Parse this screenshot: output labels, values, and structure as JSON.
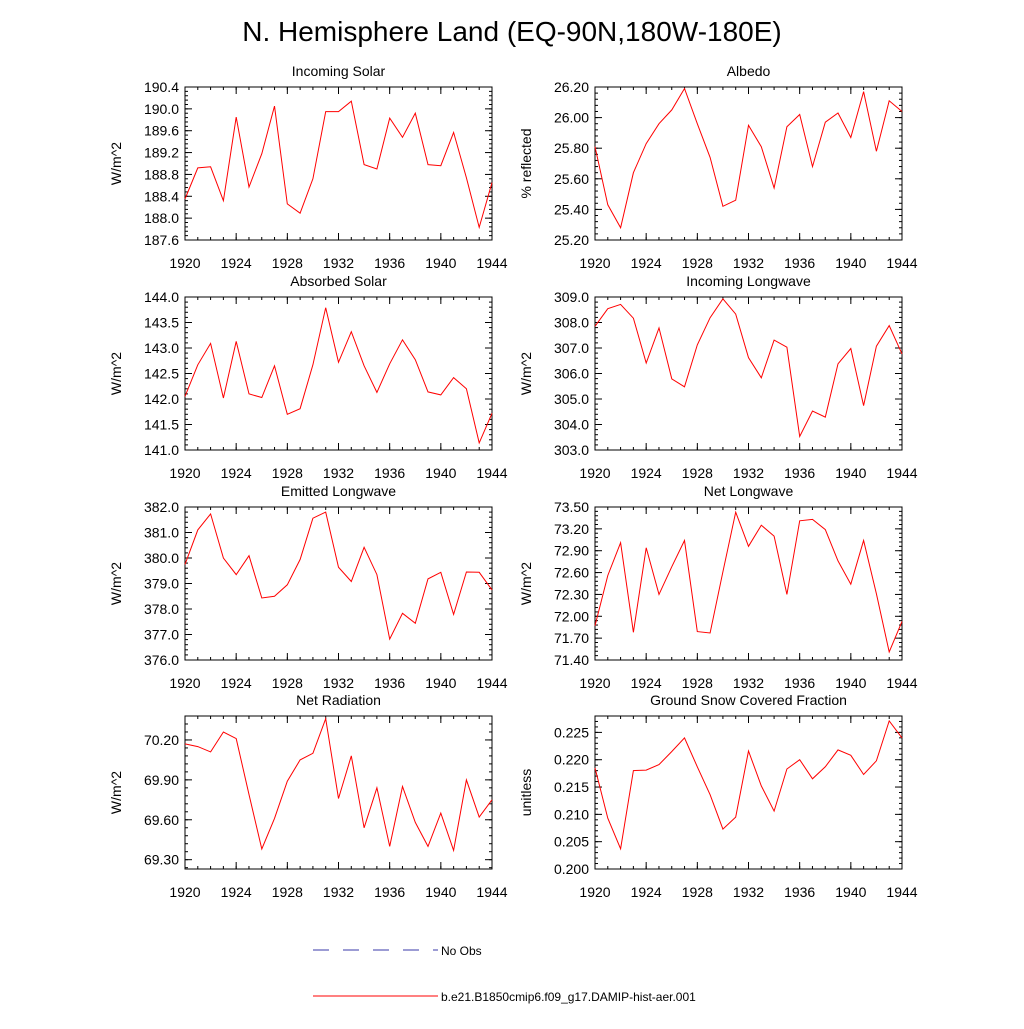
{
  "page_title": "N. Hemisphere Land (EQ-90N,180W-180E)",
  "colors": {
    "series": "#ff0000",
    "no_obs": "#3a3aa8",
    "axis": "#000000"
  },
  "legend": {
    "no_obs_label": "No Obs",
    "model_label": "b.e21.B1850cmip6.f09_g17.DAMIP-hist-aer.001"
  },
  "chart_data": [
    {
      "type": "line",
      "title": "Incoming Solar",
      "ylabel": "W/m^2",
      "xlim": [
        1920,
        1944
      ],
      "ylim": [
        187.6,
        190.4
      ],
      "yticks": [
        187.6,
        188.0,
        188.4,
        188.8,
        189.2,
        189.6,
        190.0,
        190.4
      ],
      "ytick_labels": [
        "187.6",
        "188.0",
        "188.4",
        "188.8",
        "189.2",
        "189.6",
        "190.0",
        "190.4"
      ],
      "xticks": [
        1920,
        1924,
        1928,
        1932,
        1936,
        1940,
        1944
      ],
      "xtick_labels": [
        "1920",
        "1924",
        "1928",
        "1932",
        "1936",
        "1940",
        "1944"
      ],
      "x": [
        1920,
        1921,
        1922,
        1923,
        1924,
        1925,
        1926,
        1927,
        1928,
        1929,
        1930,
        1931,
        1932,
        1933,
        1934,
        1935,
        1936,
        1937,
        1938,
        1939,
        1940,
        1941,
        1942,
        1943,
        1944
      ],
      "values": [
        188.35,
        188.92,
        188.94,
        188.32,
        189.85,
        188.57,
        189.18,
        190.05,
        188.26,
        188.09,
        188.72,
        189.95,
        189.95,
        190.14,
        188.98,
        188.9,
        189.83,
        189.48,
        189.92,
        188.98,
        188.96,
        189.57,
        188.74,
        187.83,
        188.65
      ]
    },
    {
      "type": "line",
      "title": "Albedo",
      "ylabel": "% reflected",
      "xlim": [
        1920,
        1944
      ],
      "ylim": [
        25.2,
        26.2
      ],
      "yticks": [
        25.2,
        25.4,
        25.6,
        25.8,
        26.0,
        26.2
      ],
      "ytick_labels": [
        "25.20",
        "25.40",
        "25.60",
        "25.80",
        "26.00",
        "26.20"
      ],
      "xticks": [
        1920,
        1924,
        1928,
        1932,
        1936,
        1940,
        1944
      ],
      "xtick_labels": [
        "1920",
        "1924",
        "1928",
        "1932",
        "1936",
        "1940",
        "1944"
      ],
      "x": [
        1920,
        1921,
        1922,
        1923,
        1924,
        1925,
        1926,
        1927,
        1928,
        1929,
        1930,
        1931,
        1932,
        1933,
        1934,
        1935,
        1936,
        1937,
        1938,
        1939,
        1940,
        1941,
        1942,
        1943,
        1944
      ],
      "values": [
        25.81,
        25.43,
        25.28,
        25.64,
        25.83,
        25.96,
        26.05,
        26.19,
        25.96,
        25.74,
        25.42,
        25.46,
        25.95,
        25.81,
        25.54,
        25.94,
        26.02,
        25.68,
        25.97,
        26.03,
        25.87,
        26.17,
        25.78,
        26.11,
        26.04
      ]
    },
    {
      "type": "line",
      "title": "Absorbed Solar",
      "ylabel": "W/m^2",
      "xlim": [
        1920,
        1944
      ],
      "ylim": [
        141.0,
        144.0
      ],
      "yticks": [
        141.0,
        141.5,
        142.0,
        142.5,
        143.0,
        143.5,
        144.0
      ],
      "ytick_labels": [
        "141.0",
        "141.5",
        "142.0",
        "142.5",
        "143.0",
        "143.5",
        "144.0"
      ],
      "xticks": [
        1920,
        1924,
        1928,
        1932,
        1936,
        1940,
        1944
      ],
      "xtick_labels": [
        "1920",
        "1924",
        "1928",
        "1932",
        "1936",
        "1940",
        "1944"
      ],
      "x": [
        1920,
        1921,
        1922,
        1923,
        1924,
        1925,
        1926,
        1927,
        1928,
        1929,
        1930,
        1931,
        1932,
        1933,
        1934,
        1935,
        1936,
        1937,
        1938,
        1939,
        1940,
        1941,
        1942,
        1943,
        1944
      ],
      "values": [
        142.05,
        142.67,
        143.09,
        142.02,
        143.13,
        142.1,
        142.03,
        142.65,
        141.7,
        141.81,
        142.67,
        143.79,
        142.72,
        143.32,
        142.65,
        142.13,
        142.69,
        143.16,
        142.77,
        142.14,
        142.08,
        142.42,
        142.2,
        141.14,
        141.72
      ]
    },
    {
      "type": "line",
      "title": "Incoming Longwave",
      "ylabel": "W/m^2",
      "xlim": [
        1920,
        1944
      ],
      "ylim": [
        303.0,
        309.0
      ],
      "yticks": [
        303.0,
        304.0,
        305.0,
        306.0,
        307.0,
        308.0,
        309.0
      ],
      "ytick_labels": [
        "303.0",
        "304.0",
        "305.0",
        "306.0",
        "307.0",
        "308.0",
        "309.0"
      ],
      "xticks": [
        1920,
        1924,
        1928,
        1932,
        1936,
        1940,
        1944
      ],
      "xtick_labels": [
        "1920",
        "1924",
        "1928",
        "1932",
        "1936",
        "1940",
        "1944"
      ],
      "x": [
        1920,
        1921,
        1922,
        1923,
        1924,
        1925,
        1926,
        1927,
        1928,
        1929,
        1930,
        1931,
        1932,
        1933,
        1934,
        1935,
        1936,
        1937,
        1938,
        1939,
        1940,
        1941,
        1942,
        1943,
        1944
      ],
      "values": [
        307.85,
        308.54,
        308.71,
        308.17,
        306.41,
        307.79,
        305.79,
        305.48,
        307.12,
        308.19,
        308.93,
        308.33,
        306.62,
        305.83,
        307.31,
        307.03,
        303.53,
        304.53,
        304.29,
        306.38,
        306.98,
        304.74,
        307.07,
        307.88,
        306.77
      ]
    },
    {
      "type": "line",
      "title": "Emitted Longwave",
      "ylabel": "W/m^2",
      "xlim": [
        1920,
        1944
      ],
      "ylim": [
        376.0,
        382.0
      ],
      "yticks": [
        376.0,
        377.0,
        378.0,
        379.0,
        380.0,
        381.0,
        382.0
      ],
      "ytick_labels": [
        "376.0",
        "377.0",
        "378.0",
        "379.0",
        "380.0",
        "381.0",
        "382.0"
      ],
      "xticks": [
        1920,
        1924,
        1928,
        1932,
        1936,
        1940,
        1944
      ],
      "xtick_labels": [
        "1920",
        "1924",
        "1928",
        "1932",
        "1936",
        "1940",
        "1944"
      ],
      "x": [
        1920,
        1921,
        1922,
        1923,
        1924,
        1925,
        1926,
        1927,
        1928,
        1929,
        1930,
        1931,
        1932,
        1933,
        1934,
        1935,
        1936,
        1937,
        1938,
        1939,
        1940,
        1941,
        1942,
        1943,
        1944
      ],
      "values": [
        379.75,
        381.1,
        381.73,
        380.0,
        379.35,
        380.09,
        378.43,
        378.5,
        378.95,
        379.94,
        381.56,
        381.8,
        379.64,
        379.08,
        380.42,
        379.35,
        376.82,
        377.83,
        377.44,
        379.18,
        379.44,
        377.79,
        379.45,
        379.44,
        378.75
      ]
    },
    {
      "type": "line",
      "title": "Net Longwave",
      "ylabel": "W/m^2",
      "xlim": [
        1920,
        1944
      ],
      "ylim": [
        71.4,
        73.5
      ],
      "yticks": [
        71.4,
        71.7,
        72.0,
        72.3,
        72.6,
        72.9,
        73.2,
        73.5
      ],
      "ytick_labels": [
        "71.40",
        "71.70",
        "72.00",
        "72.30",
        "72.60",
        "72.90",
        "73.20",
        "73.50"
      ],
      "xticks": [
        1920,
        1924,
        1928,
        1932,
        1936,
        1940,
        1944
      ],
      "xtick_labels": [
        "1920",
        "1924",
        "1928",
        "1932",
        "1936",
        "1940",
        "1944"
      ],
      "x": [
        1920,
        1921,
        1922,
        1923,
        1924,
        1925,
        1926,
        1927,
        1928,
        1929,
        1930,
        1931,
        1932,
        1933,
        1934,
        1935,
        1936,
        1937,
        1938,
        1939,
        1940,
        1941,
        1942,
        1943,
        1944
      ],
      "values": [
        71.87,
        72.56,
        73.01,
        71.78,
        72.94,
        72.3,
        72.68,
        73.04,
        71.79,
        71.77,
        72.61,
        73.43,
        72.96,
        73.25,
        73.1,
        72.3,
        73.31,
        73.33,
        73.19,
        72.76,
        72.44,
        73.04,
        72.31,
        71.51,
        71.93
      ]
    },
    {
      "type": "line",
      "title": "Net Radiation",
      "ylabel": "W/m^2",
      "xlim": [
        1920,
        1944
      ],
      "ylim": [
        69.23,
        70.38
      ],
      "yticks": [
        69.3,
        69.6,
        69.9,
        70.2
      ],
      "ytick_labels": [
        "69.30",
        "69.60",
        "69.90",
        "70.20"
      ],
      "xticks": [
        1920,
        1924,
        1928,
        1932,
        1936,
        1940,
        1944
      ],
      "xtick_labels": [
        "1920",
        "1924",
        "1928",
        "1932",
        "1936",
        "1940",
        "1944"
      ],
      "x": [
        1920,
        1921,
        1922,
        1923,
        1924,
        1925,
        1926,
        1927,
        1928,
        1929,
        1930,
        1931,
        1932,
        1933,
        1934,
        1935,
        1936,
        1937,
        1938,
        1939,
        1940,
        1941,
        1942,
        1943,
        1944
      ],
      "values": [
        70.17,
        70.15,
        70.11,
        70.26,
        70.21,
        69.79,
        69.38,
        69.61,
        69.89,
        70.05,
        70.1,
        70.36,
        69.76,
        70.08,
        69.54,
        69.84,
        69.4,
        69.85,
        69.58,
        69.4,
        69.65,
        69.37,
        69.9,
        69.62,
        69.75
      ]
    },
    {
      "type": "line",
      "title": "Ground Snow Covered Fraction",
      "ylabel": "unitless",
      "xlim": [
        1920,
        1944
      ],
      "ylim": [
        0.2,
        0.228
      ],
      "yticks": [
        0.2,
        0.205,
        0.21,
        0.215,
        0.22,
        0.225
      ],
      "ytick_labels": [
        "0.200",
        "0.205",
        "0.210",
        "0.215",
        "0.220",
        "0.225"
      ],
      "xticks": [
        1920,
        1924,
        1928,
        1932,
        1936,
        1940,
        1944
      ],
      "xtick_labels": [
        "1920",
        "1924",
        "1928",
        "1932",
        "1936",
        "1940",
        "1944"
      ],
      "x": [
        1920,
        1921,
        1922,
        1923,
        1924,
        1925,
        1926,
        1927,
        1928,
        1929,
        1930,
        1931,
        1932,
        1933,
        1934,
        1935,
        1936,
        1937,
        1938,
        1939,
        1940,
        1941,
        1942,
        1943,
        1944
      ],
      "values": [
        0.2185,
        0.2093,
        0.2037,
        0.218,
        0.2181,
        0.2191,
        0.2215,
        0.224,
        0.2187,
        0.2136,
        0.2073,
        0.2095,
        0.2216,
        0.2152,
        0.2106,
        0.2183,
        0.22,
        0.2165,
        0.2187,
        0.2218,
        0.2208,
        0.2173,
        0.2198,
        0.2271,
        0.224
      ]
    }
  ]
}
